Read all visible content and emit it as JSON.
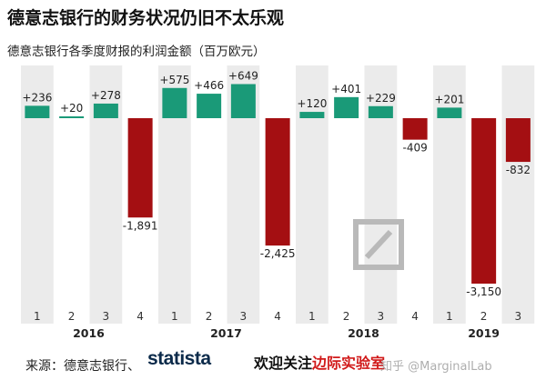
{
  "title": "德意志银行的财务状况仍旧不太乐观",
  "subtitle": "德意志银行各季度财报的利润金额（百万欧元）",
  "footer": {
    "source": "来源：德意志银行、",
    "brand": "statista",
    "promo_prefix": "欢迎关注",
    "promo_highlight": "边际实验室",
    "watermark": "知乎 @MarginalLab"
  },
  "colors": {
    "positive": "#1a9a78",
    "negative": "#a40f12",
    "band": "#ebebeb",
    "logo": "#b9b9b9"
  },
  "chart_data": {
    "type": "bar",
    "title": "德意志银行的财务状况仍旧不太乐观",
    "subtitle": "德意志银行各季度财报的利润金额（百万欧元）",
    "unit": "百万欧元",
    "years": [
      "2016",
      "2017",
      "2018",
      "2019"
    ],
    "categories": [
      "1",
      "2",
      "3",
      "4",
      "1",
      "2",
      "3",
      "4",
      "1",
      "2",
      "3",
      "4",
      "1",
      "2",
      "3"
    ],
    "year_of_category": [
      "2016",
      "2016",
      "2016",
      "2016",
      "2017",
      "2017",
      "2017",
      "2017",
      "2018",
      "2018",
      "2018",
      "2018",
      "2019",
      "2019",
      "2019"
    ],
    "values": [
      236,
      20,
      278,
      -1891,
      575,
      466,
      649,
      -2425,
      120,
      401,
      229,
      -409,
      201,
      -3150,
      -832
    ],
    "labels": [
      "+236",
      "+20",
      "+278",
      "-1,891",
      "+575",
      "+466",
      "+649",
      "-2,425",
      "+120",
      "+401",
      "+229",
      "-409",
      "+201",
      "-3,150",
      "-832"
    ],
    "ylim": [
      -3300,
      750
    ],
    "grid": false,
    "legend": "none"
  }
}
